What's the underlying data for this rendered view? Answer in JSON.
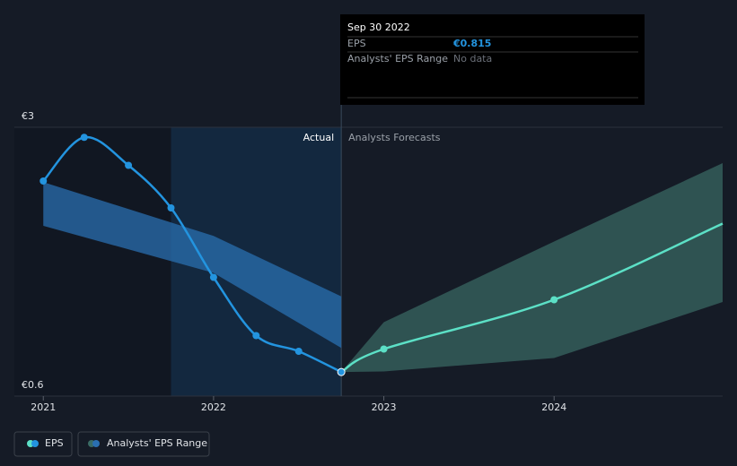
{
  "chart_data": {
    "type": "line",
    "xlim": [
      2020.83,
      2024.99
    ],
    "xticks": [
      2021,
      2022,
      2023,
      2024
    ],
    "ylim": [
      0.6,
      3
    ],
    "yticks": [
      {
        "value": 0.6,
        "label": "€0.6"
      },
      {
        "value": 3,
        "label": "€3"
      }
    ],
    "actual_label": "Actual",
    "forecast_label": "Analysts Forecasts",
    "series": [
      {
        "name": "EPS",
        "color": "#2394df",
        "forecast_color": "#5ce0c6",
        "x": [
          2021,
          2021.24,
          2021.5,
          2021.75,
          2022,
          2022.25,
          2022.5,
          2022.75
        ],
        "values": [
          2.52,
          2.91,
          2.66,
          2.28,
          1.66,
          1.14,
          1.0,
          0.815
        ],
        "forecast_x": [
          2022.75,
          2023,
          2024,
          2024.99
        ],
        "forecast_values": [
          0.815,
          1.02,
          1.46,
          2.14
        ]
      },
      {
        "name": "Analysts' EPS Range",
        "color": "#2a6fb0",
        "forecast_color": "#3a6b65",
        "x": [
          2021,
          2022,
          2022.75
        ],
        "high": [
          2.51,
          2.03,
          1.49
        ],
        "low": [
          2.12,
          1.7,
          1.03
        ],
        "forecast_x": [
          2022.75,
          2023,
          2024,
          2024.99
        ],
        "forecast_high": [
          0.815,
          1.26,
          1.98,
          2.68
        ],
        "forecast_low": [
          0.815,
          0.82,
          0.94,
          1.44
        ]
      }
    ],
    "tooltip": {
      "title": "Sep 30 2022",
      "rows": [
        [
          "EPS",
          "€0.815"
        ],
        [
          "Analysts' EPS Range",
          "No data"
        ]
      ]
    }
  }
}
